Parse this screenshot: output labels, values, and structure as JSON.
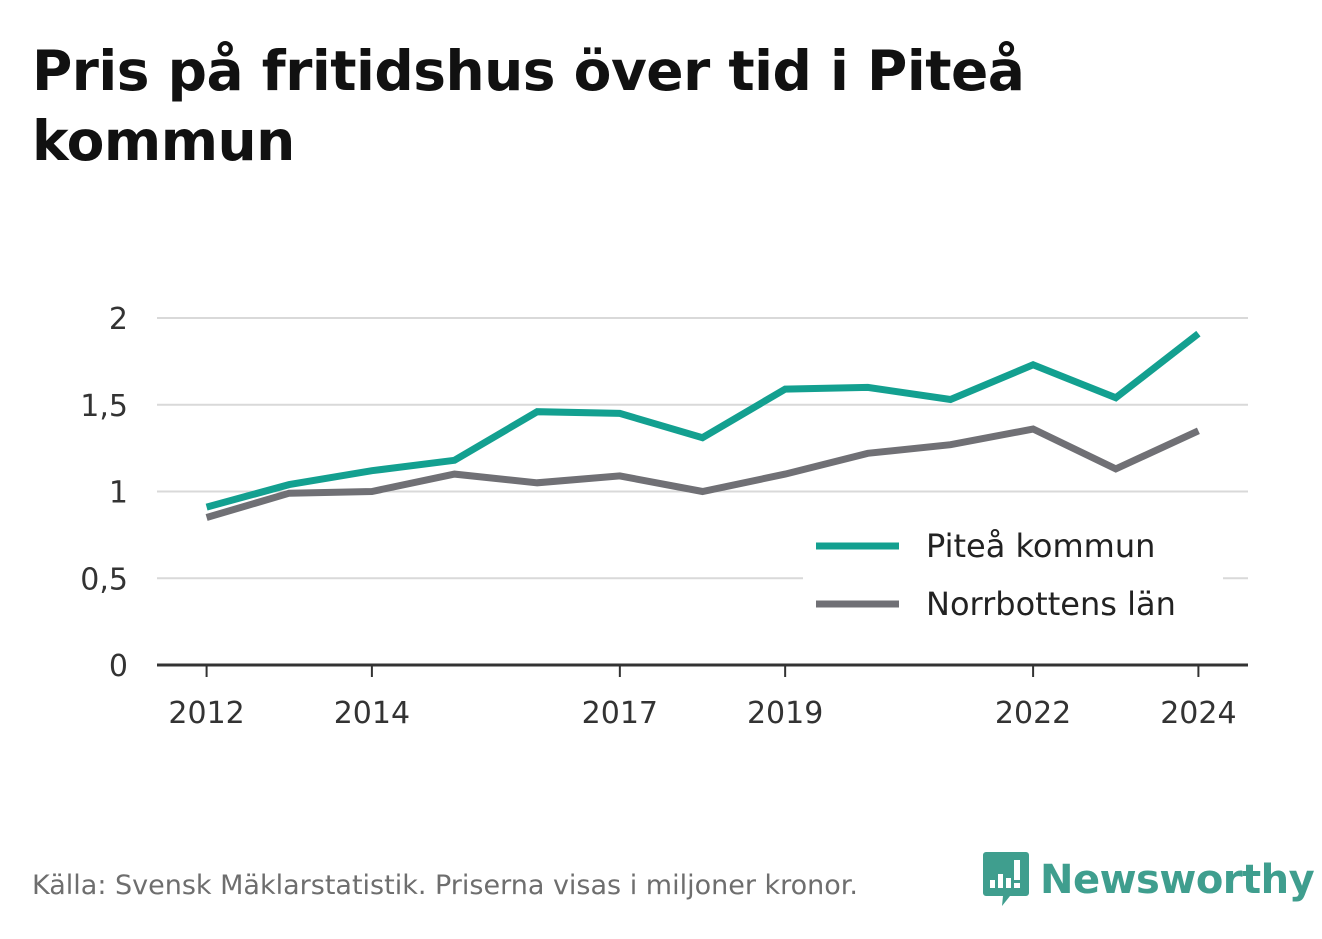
{
  "title": "Pris på fritidshus över tid i Piteå kommun",
  "source": "Källa: Svensk Mäklarstatistik. Priserna visas i miljoner kronor.",
  "brand": {
    "name": "Newsworthy",
    "icon": "newsworthy-logo-icon",
    "color": "#3f9e8e"
  },
  "chart_data": {
    "type": "line",
    "x": [
      2012,
      2013,
      2014,
      2015,
      2016,
      2017,
      2018,
      2019,
      2020,
      2021,
      2022,
      2023,
      2024
    ],
    "x_tick_labels": [
      "2012",
      "2014",
      "2017",
      "2019",
      "2022",
      "2024"
    ],
    "x_tick_values": [
      2012,
      2014,
      2017,
      2019,
      2022,
      2024
    ],
    "y_tick_labels": [
      "0",
      "0,5",
      "1",
      "1,5",
      "2"
    ],
    "y_tick_values": [
      0,
      0.5,
      1,
      1.5,
      2
    ],
    "ylim": [
      0,
      2
    ],
    "xlim": [
      2011.4,
      2024.6
    ],
    "grid": true,
    "legend_position": "bottom-right",
    "series": [
      {
        "name": "Piteå kommun",
        "color": "#13a090",
        "values": [
          0.91,
          1.04,
          1.12,
          1.18,
          1.46,
          1.45,
          1.31,
          1.59,
          1.6,
          1.53,
          1.73,
          1.54,
          1.91
        ]
      },
      {
        "name": "Norrbottens län",
        "color": "#707075",
        "values": [
          0.85,
          0.99,
          1.0,
          1.1,
          1.05,
          1.09,
          1.0,
          1.1,
          1.22,
          1.27,
          1.36,
          1.13,
          1.35
        ]
      }
    ]
  }
}
